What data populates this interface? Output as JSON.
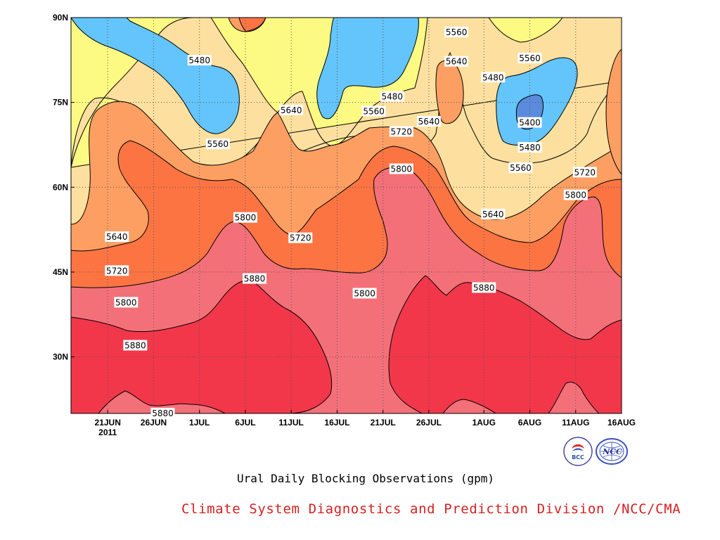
{
  "chart_data": {
    "type": "contour",
    "title": "Ural Daily Blocking Observations (gpm)",
    "xlabel": "",
    "ylabel": "",
    "x_ticks": [
      "21JUN",
      "26JUN",
      "1JUL",
      "6JUL",
      "11JUL",
      "16JUL",
      "21JUL",
      "26JUL",
      "1AUG",
      "6AUG",
      "11AUG",
      "16AUG"
    ],
    "x_year_label": "2011",
    "y_ticks": [
      "90N",
      "75N",
      "60N",
      "45N",
      "30N"
    ],
    "xlim": [
      "2011-06-17",
      "2011-08-16"
    ],
    "ylim": [
      20,
      90
    ],
    "grid": true,
    "contour_levels": [
      5400,
      5480,
      5560,
      5640,
      5720,
      5800,
      5880
    ],
    "fill_colors": {
      "below_5400": "#5b8bdc",
      "5400_5480": "#63c5fb",
      "5480_5560": "#fdfa83",
      "5560_5640": "#fde09f",
      "5640_5720": "#fd9f63",
      "5720_5800": "#fd7443",
      "5800_5880": "#f47079",
      "above_5880": "#f2374a"
    },
    "contour_labels": [
      {
        "date": "2011-07-01",
        "lat": 82.4,
        "value": 5480
      },
      {
        "date": "2011-07-11",
        "lat": 73.6,
        "value": 5640
      },
      {
        "date": "2011-07-03",
        "lat": 67.6,
        "value": 5560
      },
      {
        "date": "2011-06-22",
        "lat": 51.2,
        "value": 5640
      },
      {
        "date": "2011-06-22",
        "lat": 45.2,
        "value": 5720
      },
      {
        "date": "2011-06-23",
        "lat": 39.6,
        "value": 5800
      },
      {
        "date": "2011-06-24",
        "lat": 32.0,
        "value": 5880
      },
      {
        "date": "2011-06-27",
        "lat": 20.0,
        "value": 5880
      },
      {
        "date": "2011-07-06",
        "lat": 54.6,
        "value": 5800
      },
      {
        "date": "2011-07-12",
        "lat": 51.0,
        "value": 5720
      },
      {
        "date": "2011-07-07",
        "lat": 43.8,
        "value": 5880
      },
      {
        "date": "2011-07-19",
        "lat": 41.2,
        "value": 5800
      },
      {
        "date": "2011-07-22",
        "lat": 76.0,
        "value": 5480
      },
      {
        "date": "2011-07-20",
        "lat": 73.4,
        "value": 5560
      },
      {
        "date": "2011-07-23",
        "lat": 69.8,
        "value": 5720
      },
      {
        "date": "2011-07-26",
        "lat": 71.6,
        "value": 5640
      },
      {
        "date": "2011-07-23",
        "lat": 63.2,
        "value": 5800
      },
      {
        "date": "2011-07-29",
        "lat": 87.4,
        "value": 5560
      },
      {
        "date": "2011-07-29",
        "lat": 82.2,
        "value": 5640
      },
      {
        "date": "2011-08-06",
        "lat": 82.8,
        "value": 5560
      },
      {
        "date": "2011-08-02",
        "lat": 79.4,
        "value": 5480
      },
      {
        "date": "2011-08-06",
        "lat": 71.4,
        "value": 5400
      },
      {
        "date": "2011-08-06",
        "lat": 67.0,
        "value": 5480
      },
      {
        "date": "2011-08-05",
        "lat": 63.4,
        "value": 5560
      },
      {
        "date": "2011-08-02",
        "lat": 55.2,
        "value": 5640
      },
      {
        "date": "2011-08-12",
        "lat": 62.6,
        "value": 5720
      },
      {
        "date": "2011-08-11",
        "lat": 58.6,
        "value": 5800
      },
      {
        "date": "2011-08-01",
        "lat": 42.2,
        "value": 5880
      }
    ]
  },
  "footer": {
    "title": "Ural Daily Blocking Observations (gpm)",
    "credit": "Climate System Diagnostics and Prediction Division /NCC/CMA",
    "logo_left_text": "BCC",
    "logo_right_text": "NCC"
  }
}
